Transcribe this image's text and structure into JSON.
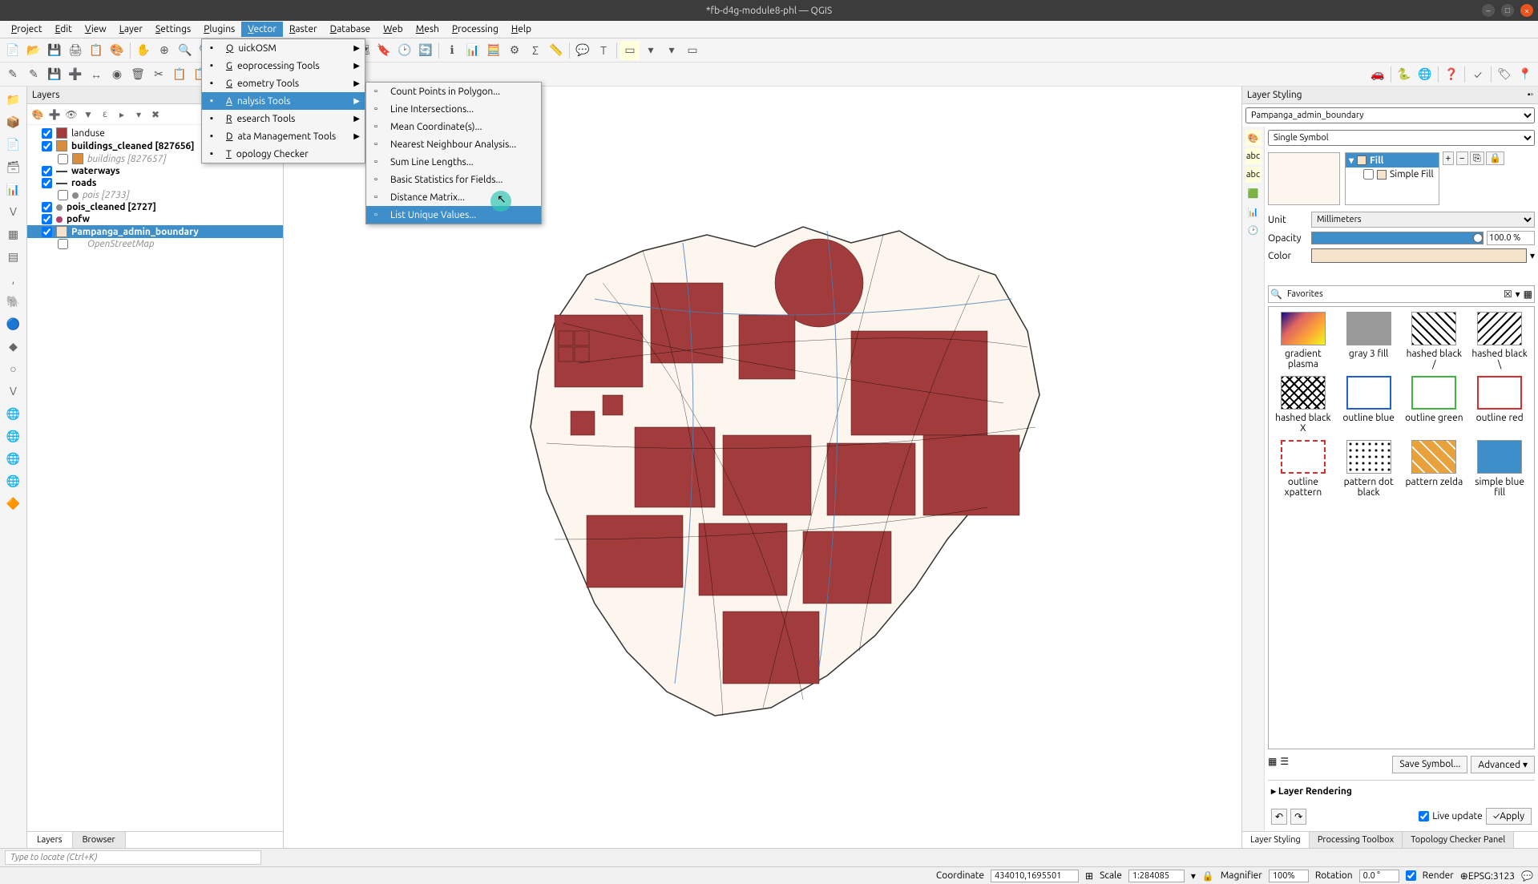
{
  "title": "*fb-d4g-module8-phl — QGIS",
  "menubar": [
    "Project",
    "Edit",
    "View",
    "Layer",
    "Settings",
    "Plugins",
    "Vector",
    "Raster",
    "Database",
    "Web",
    "Mesh",
    "Processing",
    "Help"
  ],
  "active_menu_index": 6,
  "vector_menu": [
    {
      "label": "QuickOSM",
      "arrow": true
    },
    {
      "label": "Geoprocessing Tools",
      "arrow": true
    },
    {
      "label": "Geometry Tools",
      "arrow": true
    },
    {
      "label": "Analysis Tools",
      "arrow": true,
      "sel": true
    },
    {
      "label": "Research Tools",
      "arrow": true
    },
    {
      "label": "Data Management Tools",
      "arrow": true
    },
    {
      "label": "Topology Checker",
      "arrow": false
    }
  ],
  "analysis_menu": [
    {
      "label": "Count Points in Polygon..."
    },
    {
      "label": "Line Intersections..."
    },
    {
      "label": "Mean Coordinate(s)..."
    },
    {
      "label": "Nearest Neighbour Analysis..."
    },
    {
      "label": "Sum Line Lengths..."
    },
    {
      "label": "Basic Statistics for Fields..."
    },
    {
      "label": "Distance Matrix..."
    },
    {
      "label": "List Unique Values...",
      "sel": true
    }
  ],
  "layers_panel_title": "Layers",
  "layers": [
    {
      "checked": true,
      "swatch": "#a23b3b",
      "label": "landuse"
    },
    {
      "checked": true,
      "swatch": "#d98e3e",
      "label": "buildings_cleaned [827656]",
      "bold": true
    },
    {
      "checked": false,
      "swatch": "#d98e3e",
      "label": "buildings [827657]",
      "child": true
    },
    {
      "checked": true,
      "line": true,
      "label": "waterways",
      "bold": true
    },
    {
      "checked": true,
      "line": true,
      "label": "roads",
      "bold": true
    },
    {
      "checked": false,
      "dot": "#8a8a8a",
      "label": "pois [2733]",
      "child": true
    },
    {
      "checked": true,
      "dot": "#8a8a8a",
      "label": "pois_cleaned [2727]",
      "bold": true
    },
    {
      "checked": true,
      "dot": "#b23b6a",
      "label": "pofw",
      "bold": true
    },
    {
      "checked": true,
      "swatch": "#f5e3cc",
      "label": "Pampanga_admin_boundary",
      "selected": true
    },
    {
      "checked": false,
      "label": "OpenStreetMap",
      "child": true
    }
  ],
  "layer_tabs": [
    "Layers",
    "Browser"
  ],
  "layer_tabs_active": 0,
  "locator_placeholder": "Type to locate (Ctrl+K)",
  "statusbar": {
    "coord_label": "Coordinate",
    "coord": "434010,1695501",
    "scale_label": "Scale",
    "scale": "1:284085",
    "mag_label": "Magnifier",
    "mag": "100%",
    "rot_label": "Rotation",
    "rot": "0.0 °",
    "render": "Render",
    "epsg": "EPSG:3123"
  },
  "styling": {
    "panel_title": "Layer Styling",
    "layer_select": "Pampanga_admin_boundary",
    "symbol_type": "Single Symbol",
    "fill_label": "Fill",
    "simple_fill": "Simple Fill",
    "unit_label": "Unit",
    "unit": "Millimeters",
    "opacity_label": "Opacity",
    "opacity": "100.0 %",
    "color_label": "Color",
    "fav_search": "Favorites",
    "favorites": [
      {
        "label": "gradient plasma",
        "css": "background:linear-gradient(135deg,#0d0887,#e16462,#fca636,#f0f921)"
      },
      {
        "label": "gray 3 fill",
        "css": "background:#999"
      },
      {
        "label": "hashed black /",
        "css": "background:repeating-linear-gradient(45deg,#000 0 2px,#fff 2px 8px)"
      },
      {
        "label": "hashed black \\",
        "css": "background:repeating-linear-gradient(-45deg,#000 0 2px,#fff 2px 8px)"
      },
      {
        "label": "hashed black X",
        "css": "background:repeating-linear-gradient(45deg,#000 0 2px,transparent 2px 8px),repeating-linear-gradient(-45deg,#000 0 2px,#fff 2px 8px)"
      },
      {
        "label": "outline blue",
        "css": "border:2px solid #1e5fd6;background:#fff"
      },
      {
        "label": "outline green",
        "css": "border:2px solid #3fb63f;background:#fff"
      },
      {
        "label": "outline red",
        "css": "border:2px solid #d62e2e;background:#fff"
      },
      {
        "label": "outline xpattern",
        "css": "border:2px dashed #d62e2e;background:#fff"
      },
      {
        "label": "pattern dot black",
        "css": "background:radial-gradient(#000 1px,#fff 2px);background-size:8px 8px"
      },
      {
        "label": "pattern zelda",
        "css": "background:repeating-linear-gradient(45deg,#e9a13b 0 10px,#fff 10px 12px)"
      },
      {
        "label": "simple blue fill",
        "css": "background:#3d8ec9"
      }
    ],
    "save_symbol": "Save Symbol...",
    "advanced": "Advanced",
    "rendering": "Layer Rendering",
    "live_update": "Live update",
    "apply": "Apply",
    "tabs": [
      "Layer Styling",
      "Processing Toolbox",
      "Topology Checker Panel"
    ],
    "tabs_active": 0
  }
}
